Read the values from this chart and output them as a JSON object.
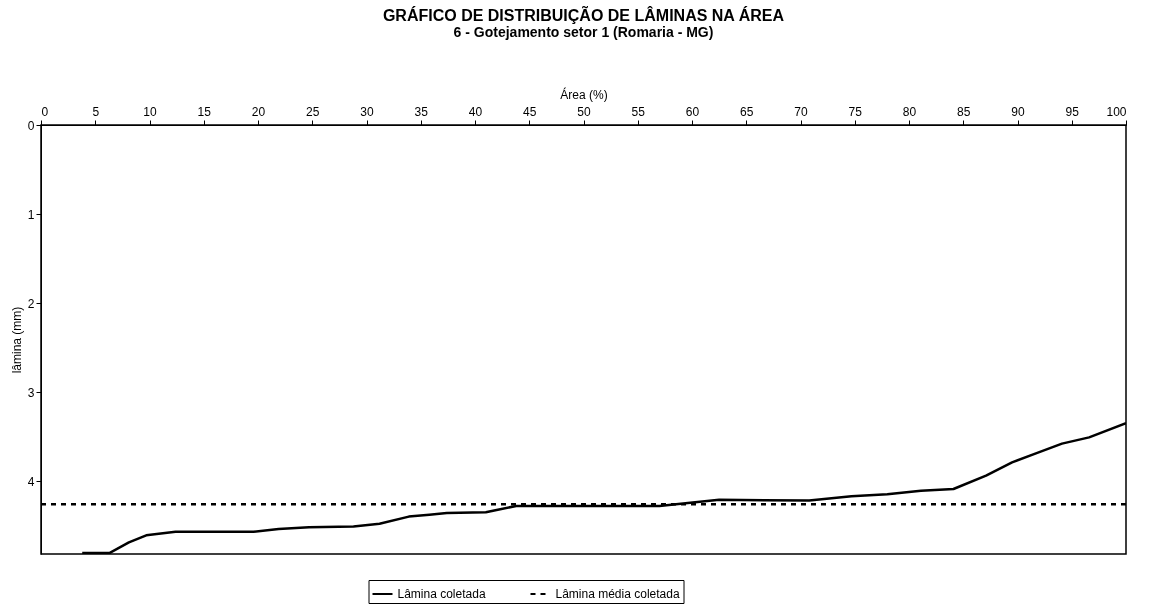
{
  "chart_data": {
    "type": "line",
    "title": "GRÁFICO DE DISTRIBUIÇÃO DE LÂMINAS NA ÁREA",
    "subtitle": "6 - Gotejamento setor 1 (Romaria - MG)",
    "xlabel": "Área (%)",
    "ylabel": "lâmina (mm)",
    "xlim": [
      0,
      100
    ],
    "xticks": [
      0,
      5,
      10,
      15,
      20,
      25,
      30,
      35,
      40,
      45,
      50,
      55,
      60,
      65,
      70,
      75,
      80,
      85,
      90,
      95,
      100
    ],
    "ylim": [
      4.82,
      0
    ],
    "yticks": [
      0,
      1,
      2,
      3,
      4
    ],
    "grid": false,
    "legend": "bottom",
    "series": [
      {
        "name": "Lâmina coletada",
        "color": "#000000",
        "line_style": "solid",
        "x": [
          3.8,
          6.3,
          8.1,
          9.7,
          12.4,
          19.6,
          21.9,
          24.7,
          28.8,
          31.2,
          33.9,
          35.8,
          37.4,
          41.0,
          43.8,
          57.0,
          59.4,
          62.5,
          70.8,
          74.7,
          78.0,
          81.1,
          84.1,
          87.1,
          89.5,
          91.7,
          94.1,
          96.6,
          100
        ],
        "values": [
          4.81,
          4.81,
          4.69,
          4.61,
          4.57,
          4.57,
          4.54,
          4.52,
          4.51,
          4.48,
          4.4,
          4.38,
          4.36,
          4.35,
          4.28,
          4.28,
          4.25,
          4.21,
          4.22,
          4.17,
          4.15,
          4.11,
          4.09,
          3.94,
          3.79,
          3.69,
          3.58,
          3.51,
          3.35
        ]
      },
      {
        "name": "Lâmina média coletada",
        "color": "#000000",
        "line_style": "dashed",
        "x": [
          0,
          100
        ],
        "values": [
          4.26,
          4.26
        ]
      }
    ]
  }
}
